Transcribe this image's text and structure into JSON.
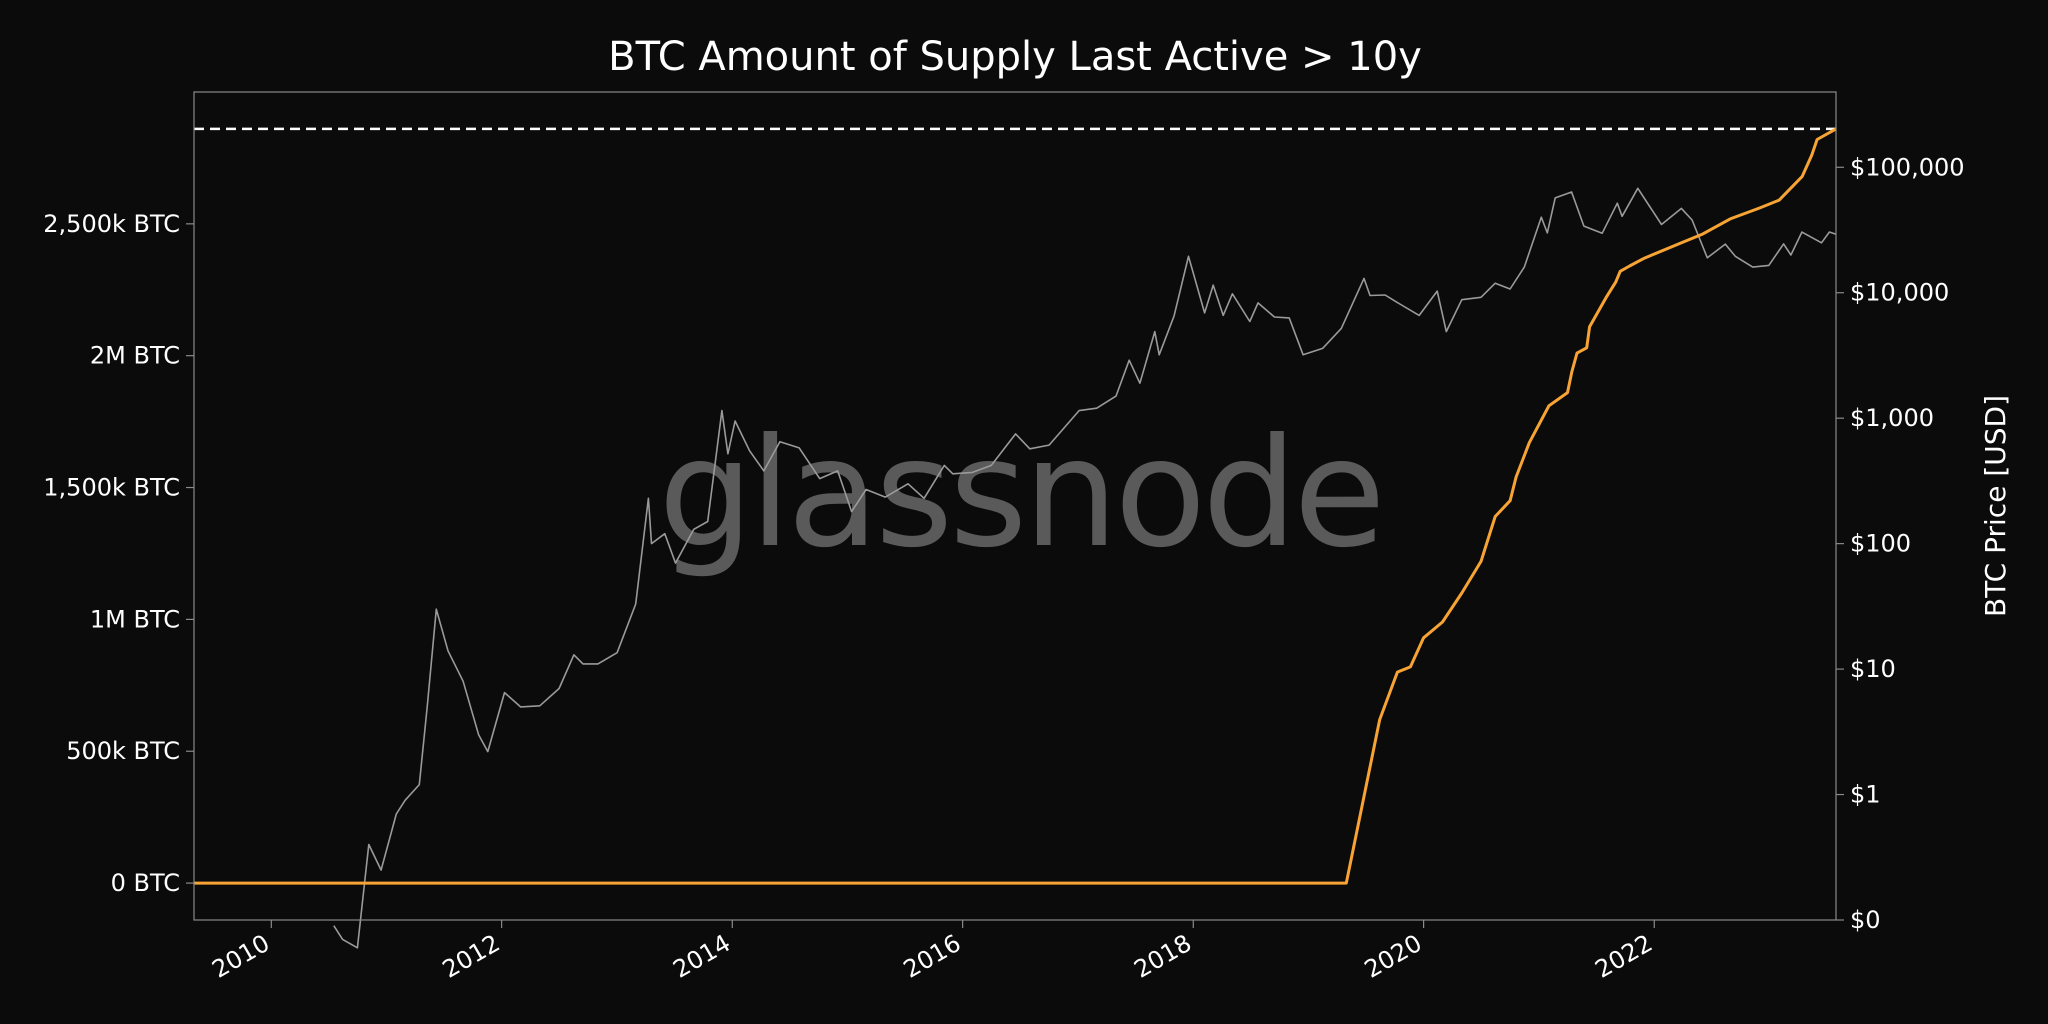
{
  "colors": {
    "background": "#0b0b0b",
    "frame": "#8a8a8a",
    "text": "#ffffff",
    "supply_line": "#f7a434",
    "price_line": "#9a9a9a",
    "ath_line": "#ffffff",
    "watermark": "#5a5a5a"
  },
  "watermark": "glassnode",
  "chart_data": {
    "type": "line",
    "title": "BTC Amount of Supply Last Active > 10y",
    "xlabel": "",
    "ylabel_left": "",
    "ylabel_right": "BTC Price [USD]",
    "x_range": [
      "2009-05-01",
      "2023-07-31"
    ],
    "y_left_range": [
      -140000,
      3000000
    ],
    "y_right_range_log10": [
      -1,
      5.6
    ],
    "y_right_scale": "log",
    "grid": false,
    "x_ticks": [
      {
        "x": "2010-01-01",
        "label": "2010"
      },
      {
        "x": "2012-01-01",
        "label": "2012"
      },
      {
        "x": "2014-01-01",
        "label": "2014"
      },
      {
        "x": "2016-01-01",
        "label": "2016"
      },
      {
        "x": "2018-01-01",
        "label": "2018"
      },
      {
        "x": "2020-01-01",
        "label": "2020"
      },
      {
        "x": "2022-01-01",
        "label": "2022"
      }
    ],
    "y_left_ticks": [
      {
        "value": 0,
        "label": "0 BTC"
      },
      {
        "value": 500000,
        "label": "500k BTC"
      },
      {
        "value": 1000000,
        "label": "1M BTC"
      },
      {
        "value": 1500000,
        "label": "1,500k BTC"
      },
      {
        "value": 2000000,
        "label": "2M BTC"
      },
      {
        "value": 2500000,
        "label": "2,500k BTC"
      }
    ],
    "y_right_ticks": [
      {
        "value": 0.1,
        "label": "$0"
      },
      {
        "value": 1,
        "label": "$1"
      },
      {
        "value": 10,
        "label": "$10"
      },
      {
        "value": 100,
        "label": "$100"
      },
      {
        "value": 1000,
        "label": "$1,000"
      },
      {
        "value": 10000,
        "label": "$10,000"
      },
      {
        "value": 100000,
        "label": "$100,000"
      }
    ],
    "reference_line": {
      "axis": "left",
      "value": 2860000,
      "style": "dashed"
    },
    "series": [
      {
        "axis": "left",
        "points": [
          [
            "2009-05-01",
            0
          ],
          [
            "2019-05-01",
            0
          ],
          [
            "2019-08-15",
            620000
          ],
          [
            "2019-10-10",
            800000
          ],
          [
            "2019-11-20",
            820000
          ],
          [
            "2020-01-01",
            930000
          ],
          [
            "2020-03-01",
            990000
          ],
          [
            "2020-05-01",
            1100000
          ],
          [
            "2020-07-01",
            1220000
          ],
          [
            "2020-08-15",
            1390000
          ],
          [
            "2020-10-01",
            1450000
          ],
          [
            "2020-10-20",
            1540000
          ],
          [
            "2020-12-01",
            1670000
          ],
          [
            "2021-02-01",
            1810000
          ],
          [
            "2021-04-01",
            1860000
          ],
          [
            "2021-04-15",
            1940000
          ],
          [
            "2021-05-01",
            2010000
          ],
          [
            "2021-06-01",
            2030000
          ],
          [
            "2021-06-10",
            2110000
          ],
          [
            "2021-08-01",
            2220000
          ],
          [
            "2021-09-01",
            2280000
          ],
          [
            "2021-09-15",
            2320000
          ],
          [
            "2021-10-15",
            2340000
          ],
          [
            "2021-12-01",
            2370000
          ],
          [
            "2022-04-01",
            2430000
          ],
          [
            "2022-06-01",
            2460000
          ],
          [
            "2022-09-01",
            2520000
          ],
          [
            "2022-12-01",
            2560000
          ],
          [
            "2023-02-01",
            2590000
          ],
          [
            "2023-04-15",
            2680000
          ],
          [
            "2023-05-15",
            2760000
          ],
          [
            "2023-06-01",
            2820000
          ],
          [
            "2023-07-31",
            2860000
          ]
        ]
      },
      {
        "axis": "right",
        "points": [
          [
            "2010-07-18",
            0.09
          ],
          [
            "2010-08-15",
            0.07
          ],
          [
            "2010-10-01",
            0.06
          ],
          [
            "2010-11-06",
            0.4
          ],
          [
            "2010-12-15",
            0.25
          ],
          [
            "2011-02-01",
            0.7
          ],
          [
            "2011-03-01",
            0.9
          ],
          [
            "2011-04-15",
            1.2
          ],
          [
            "2011-05-10",
            5
          ],
          [
            "2011-06-08",
            30
          ],
          [
            "2011-07-15",
            14
          ],
          [
            "2011-09-01",
            8
          ],
          [
            "2011-10-20",
            3
          ],
          [
            "2011-11-18",
            2.2
          ],
          [
            "2012-01-10",
            6.5
          ],
          [
            "2012-03-01",
            5
          ],
          [
            "2012-05-01",
            5.1
          ],
          [
            "2012-07-01",
            7
          ],
          [
            "2012-08-17",
            13
          ],
          [
            "2012-09-15",
            11
          ],
          [
            "2012-11-01",
            11
          ],
          [
            "2013-01-01",
            13.5
          ],
          [
            "2013-03-01",
            33
          ],
          [
            "2013-04-10",
            230
          ],
          [
            "2013-04-20",
            100
          ],
          [
            "2013-06-01",
            120
          ],
          [
            "2013-07-05",
            70
          ],
          [
            "2013-09-01",
            130
          ],
          [
            "2013-10-15",
            150
          ],
          [
            "2013-11-29",
            1150
          ],
          [
            "2013-12-18",
            520
          ],
          [
            "2014-01-10",
            950
          ],
          [
            "2014-02-25",
            550
          ],
          [
            "2014-04-11",
            380
          ],
          [
            "2014-06-01",
            650
          ],
          [
            "2014-08-01",
            580
          ],
          [
            "2014-10-05",
            330
          ],
          [
            "2014-12-01",
            380
          ],
          [
            "2015-01-14",
            180
          ],
          [
            "2015-03-01",
            270
          ],
          [
            "2015-05-01",
            235
          ],
          [
            "2015-07-12",
            300
          ],
          [
            "2015-09-01",
            230
          ],
          [
            "2015-11-04",
            420
          ],
          [
            "2015-12-01",
            360
          ],
          [
            "2016-02-01",
            370
          ],
          [
            "2016-04-01",
            420
          ],
          [
            "2016-06-17",
            750
          ],
          [
            "2016-08-01",
            570
          ],
          [
            "2016-10-01",
            610
          ],
          [
            "2017-01-04",
            1150
          ],
          [
            "2017-03-01",
            1200
          ],
          [
            "2017-05-01",
            1500
          ],
          [
            "2017-06-12",
            2900
          ],
          [
            "2017-07-16",
            1900
          ],
          [
            "2017-09-01",
            4900
          ],
          [
            "2017-09-15",
            3200
          ],
          [
            "2017-11-01",
            6500
          ],
          [
            "2017-12-17",
            19500
          ],
          [
            "2018-02-06",
            6900
          ],
          [
            "2018-03-05",
            11500
          ],
          [
            "2018-04-06",
            6600
          ],
          [
            "2018-05-05",
            9800
          ],
          [
            "2018-06-29",
            5900
          ],
          [
            "2018-07-25",
            8300
          ],
          [
            "2018-09-15",
            6400
          ],
          [
            "2018-11-01",
            6300
          ],
          [
            "2018-12-15",
            3200
          ],
          [
            "2019-02-15",
            3600
          ],
          [
            "2019-04-15",
            5200
          ],
          [
            "2019-06-26",
            13000
          ],
          [
            "2019-07-15",
            9500
          ],
          [
            "2019-09-01",
            9600
          ],
          [
            "2019-10-15",
            8200
          ],
          [
            "2019-12-18",
            6600
          ],
          [
            "2020-02-13",
            10300
          ],
          [
            "2020-03-13",
            4900
          ],
          [
            "2020-05-01",
            8800
          ],
          [
            "2020-07-01",
            9200
          ],
          [
            "2020-08-15",
            11900
          ],
          [
            "2020-10-01",
            10700
          ],
          [
            "2020-11-15",
            16000
          ],
          [
            "2021-01-08",
            40000
          ],
          [
            "2021-01-27",
            30000
          ],
          [
            "2021-02-21",
            57000
          ],
          [
            "2021-04-14",
            63500
          ],
          [
            "2021-05-23",
            34000
          ],
          [
            "2021-07-20",
            29800
          ],
          [
            "2021-09-06",
            51700
          ],
          [
            "2021-09-21",
            40700
          ],
          [
            "2021-11-10",
            68000
          ],
          [
            "2022-01-24",
            35000
          ],
          [
            "2022-03-28",
            47000
          ],
          [
            "2022-05-01",
            38000
          ],
          [
            "2022-06-18",
            19000
          ],
          [
            "2022-08-14",
            24400
          ],
          [
            "2022-09-15",
            19500
          ],
          [
            "2022-11-09",
            16000
          ],
          [
            "2022-12-30",
            16500
          ],
          [
            "2023-02-15",
            24500
          ],
          [
            "2023-03-10",
            20000
          ],
          [
            "2023-04-14",
            30400
          ],
          [
            "2023-06-15",
            25000
          ],
          [
            "2023-07-10",
            30500
          ],
          [
            "2023-07-31",
            29200
          ]
        ]
      }
    ]
  }
}
